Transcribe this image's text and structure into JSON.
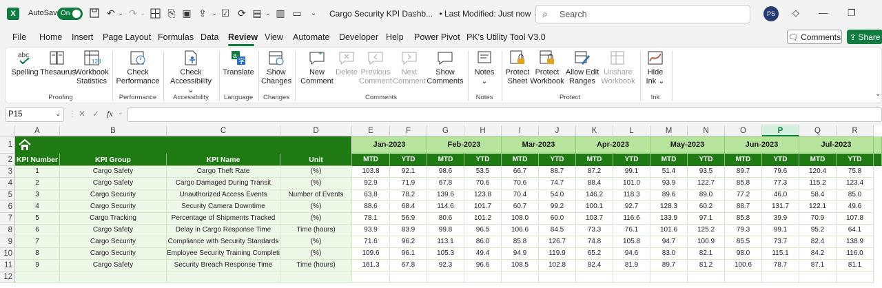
{
  "titlebar": {
    "autosave_label": "AutoSave",
    "autosave_state": "On",
    "doc_title": "Cargo Security KPI Dashb...",
    "last_modified": "• Last Modified: Just now ⌄",
    "search_placeholder": "Search",
    "avatar_initials": "PS"
  },
  "menu": {
    "items": [
      "File",
      "Home",
      "Insert",
      "Page Layout",
      "Formulas",
      "Data",
      "Review",
      "View",
      "Automate",
      "Developer",
      "Help",
      "Power Pivot",
      "PK's Utility Tool V3.0"
    ],
    "active": "Review",
    "comments_btn": "Comments",
    "share_btn": "Share"
  },
  "ribbon": {
    "buttons": [
      {
        "label": "Spelling",
        "icon": "spelling-icon",
        "enabled": true
      },
      {
        "label": "Thesaurus",
        "icon": "thesaurus-icon",
        "enabled": true
      },
      {
        "label": "Workbook Statistics",
        "icon": "workbook-statistics-icon",
        "enabled": true
      },
      {
        "label": "Check Performance",
        "icon": "check-performance-icon",
        "enabled": true
      },
      {
        "label": "Check Accessibility ⌄",
        "icon": "accessibility-icon",
        "enabled": true
      },
      {
        "label": "Translate",
        "icon": "translate-icon",
        "enabled": true
      },
      {
        "label": "Show Changes",
        "icon": "show-changes-icon",
        "enabled": true
      },
      {
        "label": "New Comment",
        "icon": "new-comment-icon",
        "enabled": true
      },
      {
        "label": "Delete",
        "icon": "delete-comment-icon",
        "enabled": false
      },
      {
        "label": "Previous Comment",
        "icon": "previous-comment-icon",
        "enabled": false
      },
      {
        "label": "Next Comment",
        "icon": "next-comment-icon",
        "enabled": false
      },
      {
        "label": "Show Comments",
        "icon": "show-comments-icon",
        "enabled": true
      },
      {
        "label": "Notes ⌄",
        "icon": "notes-icon",
        "enabled": true
      },
      {
        "label": "Protect Sheet",
        "icon": "protect-sheet-icon",
        "enabled": true
      },
      {
        "label": "Protect Workbook",
        "icon": "protect-workbook-icon",
        "enabled": true
      },
      {
        "label": "Allow Edit Ranges",
        "icon": "allow-edit-ranges-icon",
        "enabled": true
      },
      {
        "label": "Unshare Workbook",
        "icon": "unshare-workbook-icon",
        "enabled": false
      },
      {
        "label": "Hide Ink ⌄",
        "icon": "hide-ink-icon",
        "enabled": true
      }
    ],
    "groups": [
      "Proofing",
      "Performance",
      "Accessibility",
      "Language",
      "Changes",
      "Comments",
      "Notes",
      "Protect",
      "Ink"
    ]
  },
  "formula_bar": {
    "name_box": "P15",
    "fx": "fx",
    "formula": ""
  },
  "sheet": {
    "columns": [
      "A",
      "B",
      "C",
      "D",
      "E",
      "F",
      "G",
      "H",
      "I",
      "J",
      "K",
      "L",
      "M",
      "N",
      "O",
      "P",
      "Q",
      "R"
    ],
    "selected_column": "P",
    "rows": [
      "1",
      "2",
      "3",
      "4",
      "5",
      "6",
      "7",
      "8",
      "9",
      "10",
      "11",
      "12"
    ],
    "headers": [
      "KPI Number",
      "KPI Group",
      "KPI Name",
      "Unit"
    ],
    "months": [
      "Jan-2023",
      "Feb-2023",
      "Mar-2023",
      "Apr-2023",
      "May-2023",
      "Jun-2023",
      "Jul-2023"
    ],
    "sub_headers": [
      "MTD",
      "YTD"
    ],
    "data": [
      {
        "num": "1",
        "group": "Cargo Safety",
        "name": "Cargo Theft Rate",
        "unit": "(%)",
        "values": [
          "103.8",
          "92.1",
          "98.6",
          "53.5",
          "66.7",
          "88.7",
          "87.2",
          "99.1",
          "51.4",
          "93.5",
          "89.7",
          "79.6",
          "120.4",
          "75.8"
        ]
      },
      {
        "num": "2",
        "group": "Cargo Safety",
        "name": "Cargo Damaged During Transit",
        "unit": "(%)",
        "values": [
          "92.9",
          "71.9",
          "67.8",
          "70.6",
          "70.6",
          "74.7",
          "88.4",
          "101.0",
          "93.9",
          "122.7",
          "85.8",
          "77.3",
          "115.2",
          "123.4"
        ]
      },
      {
        "num": "3",
        "group": "Cargo Security",
        "name": "Unauthorized Access Events",
        "unit": "Number of Events",
        "values": [
          "63.8",
          "78.2",
          "139.6",
          "123.8",
          "70.4",
          "54.0",
          "146.2",
          "118.3",
          "89.6",
          "89.0",
          "77.2",
          "46.0",
          "58.4",
          "85.0"
        ]
      },
      {
        "num": "4",
        "group": "Cargo Security",
        "name": "Security Camera Downtime",
        "unit": "(%)",
        "values": [
          "88.6",
          "68.4",
          "114.6",
          "101.7",
          "60.7",
          "99.2",
          "100.1",
          "92.7",
          "128.3",
          "60.2",
          "88.7",
          "131.7",
          "122.1",
          "49.6"
        ]
      },
      {
        "num": "5",
        "group": "Cargo Tracking",
        "name": "Percentage of Shipments Tracked",
        "unit": "(%)",
        "values": [
          "78.1",
          "56.9",
          "80.6",
          "101.2",
          "108.0",
          "60.0",
          "103.7",
          "116.6",
          "133.9",
          "97.1",
          "85.8",
          "39.9",
          "70.9",
          "107.8"
        ]
      },
      {
        "num": "6",
        "group": "Cargo Safety",
        "name": "Delay in Cargo Response Time",
        "unit": "Time (hours)",
        "values": [
          "93.9",
          "83.9",
          "99.8",
          "96.5",
          "106.6",
          "84.5",
          "73.3",
          "76.1",
          "101.6",
          "125.2",
          "79.3",
          "99.1",
          "95.2",
          "64.1"
        ]
      },
      {
        "num": "7",
        "group": "Cargo Security",
        "name": "Compliance with Security Standards",
        "unit": "(%)",
        "values": [
          "71.6",
          "96.2",
          "113.1",
          "86.0",
          "85.8",
          "126.7",
          "74.8",
          "105.8",
          "94.7",
          "100.9",
          "85.5",
          "73.7",
          "82.4",
          "138.9"
        ]
      },
      {
        "num": "8",
        "group": "Cargo Security",
        "name": "Employee Security Training Completion",
        "unit": "(%)",
        "values": [
          "109.6",
          "96.1",
          "105.3",
          "49.4",
          "94.9",
          "119.9",
          "65.2",
          "94.6",
          "83.0",
          "82.1",
          "98.0",
          "115.1",
          "84.2",
          "116.0"
        ]
      },
      {
        "num": "9",
        "group": "Cargo Safety",
        "name": "Security Breach Response Time",
        "unit": "Time (hours)",
        "values": [
          "161.3",
          "67.8",
          "92.3",
          "96.6",
          "108.5",
          "102.8",
          "82.4",
          "81.9",
          "89.7",
          "81.2",
          "100.6",
          "78.7",
          "87.1",
          "81.1"
        ]
      }
    ]
  },
  "colors": {
    "excel_green": "#107c41",
    "header_dark_green": "#1f7a14",
    "month_light_green": "#b7e49c"
  }
}
